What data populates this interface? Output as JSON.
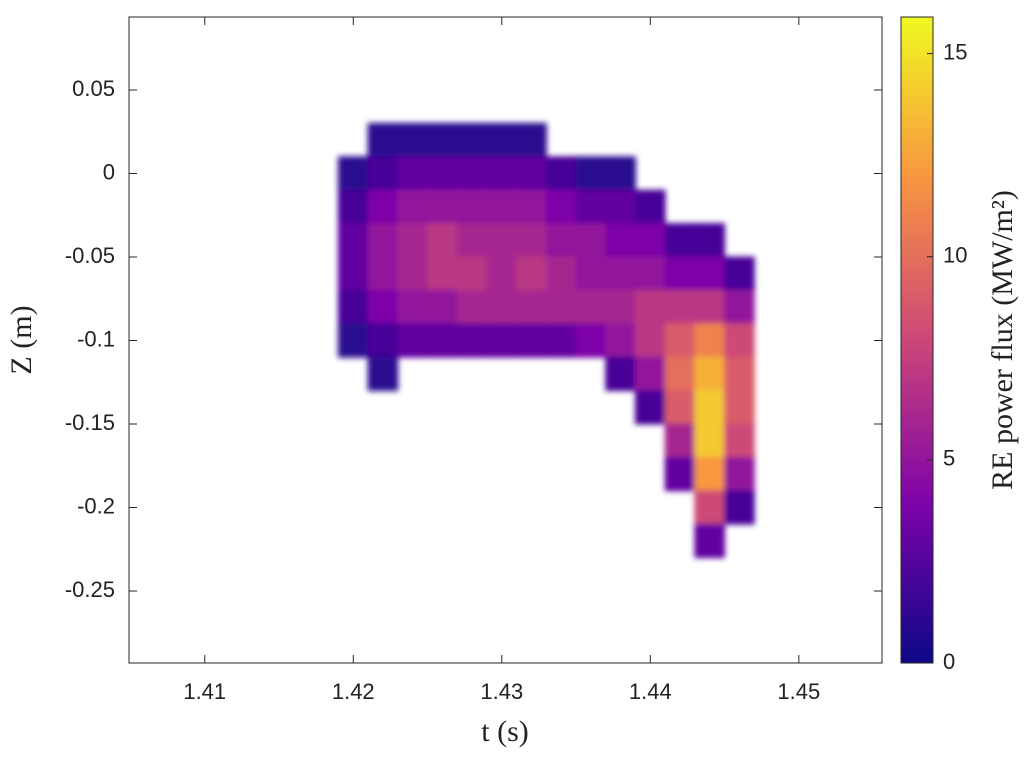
{
  "chart_data": {
    "type": "heatmap",
    "xlabel": "t (s)",
    "ylabel": "Z (m)",
    "colorbar_label": "RE power flux (MW/m²)",
    "x": [
      1.42,
      1.422,
      1.424,
      1.426,
      1.428,
      1.43,
      1.432,
      1.434,
      1.436,
      1.438,
      1.44,
      1.442,
      1.444,
      1.446
    ],
    "y": [
      0.02,
      0.0,
      -0.02,
      -0.04,
      -0.06,
      -0.08,
      -0.1,
      -0.12,
      -0.14,
      -0.16,
      -0.18,
      -0.2,
      -0.22
    ],
    "z": [
      [
        null,
        1,
        1,
        1,
        1,
        1,
        1,
        null,
        null,
        null,
        null,
        null,
        null,
        null
      ],
      [
        1,
        2,
        3,
        3,
        3,
        3,
        3,
        2,
        1,
        1,
        null,
        null,
        null,
        null
      ],
      [
        2,
        4,
        5,
        5,
        5,
        5,
        5,
        4,
        3,
        3,
        2,
        null,
        null,
        null
      ],
      [
        3,
        5,
        6,
        7,
        6,
        6,
        6,
        5,
        5,
        4,
        4,
        2,
        2,
        null
      ],
      [
        3,
        5,
        6,
        7,
        7,
        6,
        7,
        6,
        5,
        5,
        5,
        4,
        4,
        2
      ],
      [
        2,
        4,
        5,
        5,
        6,
        6,
        6,
        6,
        6,
        6,
        7,
        7,
        7,
        5
      ],
      [
        1,
        2,
        3,
        3,
        3,
        3,
        3,
        3,
        4,
        5,
        7,
        9,
        11,
        8
      ],
      [
        null,
        1,
        null,
        null,
        null,
        null,
        null,
        null,
        null,
        2,
        5,
        10,
        13,
        9
      ],
      [
        null,
        null,
        null,
        null,
        null,
        null,
        null,
        null,
        null,
        null,
        2,
        9,
        14,
        9
      ],
      [
        null,
        null,
        null,
        null,
        null,
        null,
        null,
        null,
        null,
        null,
        null,
        6,
        14,
        8
      ],
      [
        null,
        null,
        null,
        null,
        null,
        null,
        null,
        null,
        null,
        null,
        null,
        3,
        12,
        5
      ],
      [
        null,
        null,
        null,
        null,
        null,
        null,
        null,
        null,
        null,
        null,
        null,
        null,
        8,
        2
      ],
      [
        null,
        null,
        null,
        null,
        null,
        null,
        null,
        null,
        null,
        null,
        null,
        null,
        3,
        null
      ]
    ],
    "xlim": [
      1.4049,
      1.4556
    ],
    "xticks": [
      1.41,
      1.42,
      1.43,
      1.44,
      1.45
    ],
    "ylim": [
      -0.2931,
      0.0937
    ],
    "yticks": [
      -0.25,
      -0.2,
      -0.15,
      -0.1,
      -0.05,
      0,
      0.05
    ],
    "clim": [
      0,
      15.9
    ],
    "cticks": [
      0,
      5,
      10,
      15
    ],
    "colormap": [
      "#0d0887",
      "#7e03a8",
      "#cc4778",
      "#f89540",
      "#f0f921"
    ]
  }
}
